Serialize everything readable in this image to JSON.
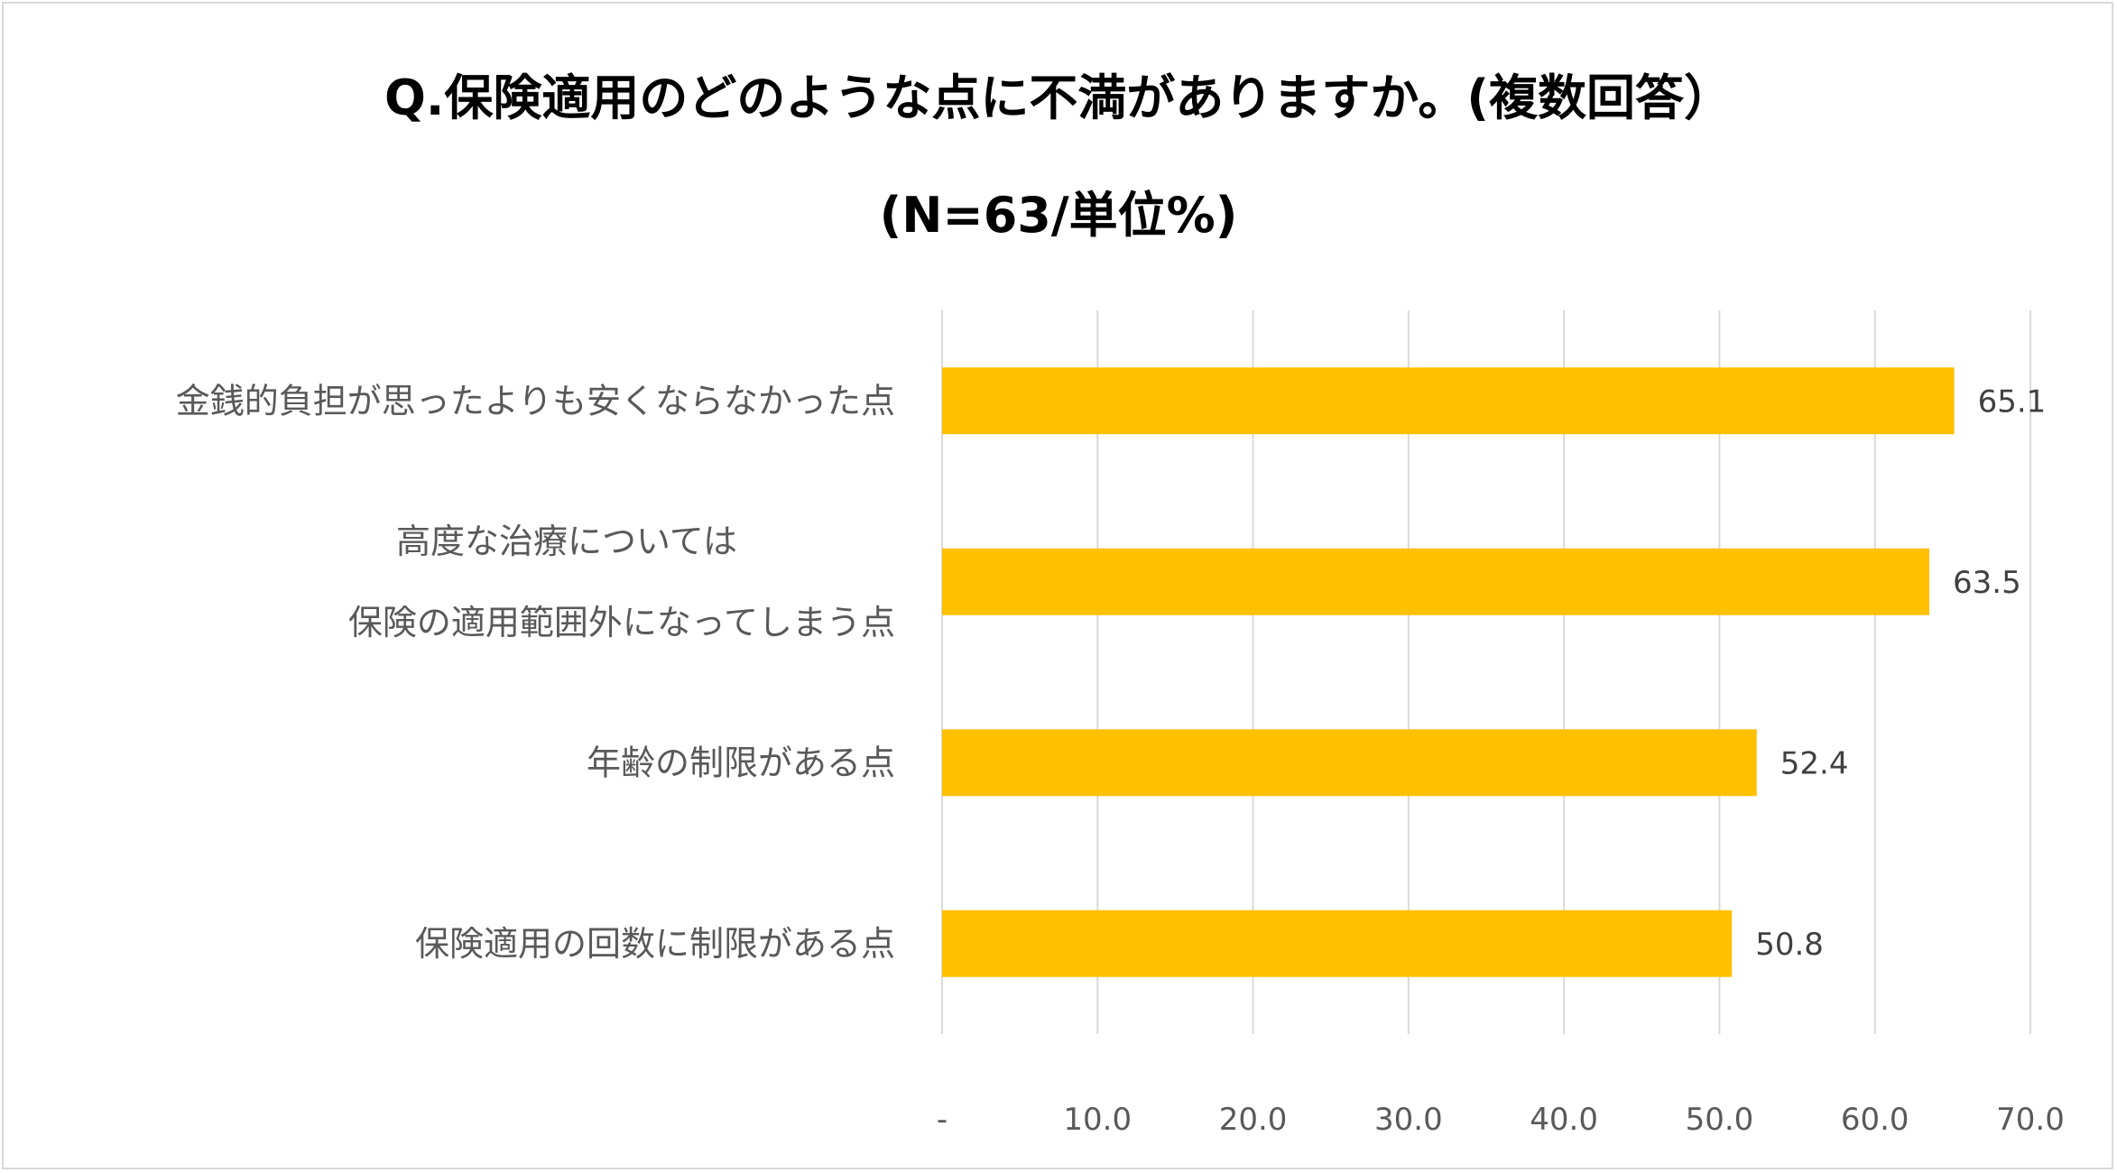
{
  "chart_data": {
    "type": "bar",
    "orientation": "horizontal",
    "title": "Q.保険適用のどのような点に不満がありますか。(複数回答）",
    "subtitle": "(N=63/単位%)",
    "categories": [
      [
        "金銭的負担が思ったよりも安くならなかった点"
      ],
      [
        "高度な治療については",
        "保険の適用範囲外になってしまう点"
      ],
      [
        "年齢の制限がある点"
      ],
      [
        "保険適用の回数に制限がある点"
      ]
    ],
    "values": [
      65.1,
      63.5,
      52.4,
      50.8
    ],
    "value_labels": [
      "65.1",
      "63.5",
      "52.4",
      "50.8"
    ],
    "xlim": [
      0,
      70
    ],
    "xticks": [
      0,
      10,
      20,
      30,
      40,
      50,
      60,
      70
    ],
    "xtick_labels": [
      "-",
      "10.0",
      "20.0",
      "30.0",
      "40.0",
      "50.0",
      "60.0",
      "70.0"
    ],
    "grid": true,
    "bar_color": "#FFC000",
    "grid_color": "#d9d9d9",
    "legend": "none"
  }
}
